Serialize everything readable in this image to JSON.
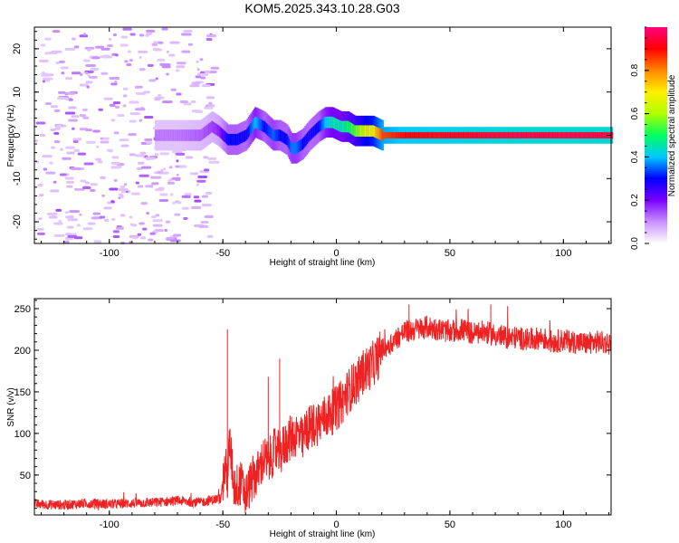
{
  "title": "KOM5.2025.343.10.28.G03",
  "chart_data": [
    {
      "type": "heatmap",
      "xlabel": "Height of straight line (km)",
      "ylabel": "Frequency (Hz)",
      "xlim": [
        -133,
        121
      ],
      "ylim": [
        -25,
        25
      ],
      "xticks": [
        -100,
        -50,
        0,
        50,
        100
      ],
      "yticks": [
        -20,
        -10,
        0,
        10,
        20
      ],
      "colorbar": {
        "label": "Normalized spectral amplitude",
        "range": [
          0,
          1
        ],
        "ticks": [
          0.0,
          0.2,
          0.4,
          0.6,
          0.8
        ],
        "tick_labels": [
          "0.0",
          "0.2",
          "0.4",
          "0.6",
          "0.8"
        ],
        "colormap": [
          "#ffffff",
          "#c890ff",
          "#7a00ff",
          "#0000ff",
          "#00c8ff",
          "#00ff60",
          "#b0ff00",
          "#ffee00",
          "#ff8800",
          "#ff0000",
          "#ff0080"
        ]
      },
      "ridge": {
        "x": [
          -80,
          -70,
          -60,
          -55,
          -52,
          -48,
          -44,
          -40,
          -36,
          -32,
          -28,
          -25,
          -22,
          -20,
          -18,
          -15,
          -12,
          -8,
          -5,
          -2,
          2,
          5,
          8,
          12,
          16,
          20,
          30,
          50,
          80,
          121
        ],
        "freq": [
          0,
          0,
          0,
          2,
          1,
          -1,
          -1,
          0,
          3,
          2,
          0,
          0,
          -1,
          -3,
          -3,
          -2,
          0,
          2,
          3,
          3,
          2,
          2,
          1,
          1,
          1,
          0,
          0,
          0,
          0,
          0
        ],
        "amplitude": [
          0.12,
          0.12,
          0.14,
          0.16,
          0.18,
          0.3,
          0.3,
          0.28,
          0.4,
          0.3,
          0.35,
          0.3,
          0.3,
          0.36,
          0.36,
          0.3,
          0.28,
          0.3,
          0.4,
          0.45,
          0.45,
          0.5,
          0.55,
          0.65,
          0.7,
          0.85,
          0.9,
          0.92,
          0.95,
          0.95
        ]
      }
    },
    {
      "type": "line",
      "xlabel": "Height of straight line (km)",
      "ylabel": "SNR (v/v)",
      "xlim": [
        -133,
        121
      ],
      "ylim": [
        2,
        262
      ],
      "xticks": [
        -100,
        -50,
        0,
        50,
        100
      ],
      "yticks": [
        50,
        100,
        150,
        200,
        250
      ],
      "color": "#ee2222",
      "series": [
        {
          "x": [
            -133,
            -120,
            -110,
            -100,
            -90,
            -80,
            -70,
            -60,
            -55,
            -51,
            -49,
            -48,
            -47,
            -45,
            -42,
            -40,
            -37,
            -35,
            -32,
            -30,
            -27,
            -25,
            -22,
            -20,
            -17,
            -15,
            -13,
            -10,
            -7,
            -5,
            -2,
            0,
            3,
            5,
            8,
            10,
            12,
            15,
            18,
            20,
            22,
            25,
            28,
            30,
            35,
            40,
            45,
            50,
            55,
            60,
            65,
            70,
            75,
            80,
            85,
            90,
            95,
            100,
            105,
            110,
            115,
            121
          ],
          "y": [
            15,
            14,
            16,
            15,
            16,
            17,
            19,
            17,
            20,
            22,
            60,
            45,
            90,
            35,
            40,
            25,
            45,
            50,
            70,
            65,
            80,
            75,
            90,
            95,
            100,
            90,
            105,
            110,
            115,
            120,
            125,
            130,
            140,
            150,
            160,
            165,
            175,
            180,
            190,
            200,
            205,
            210,
            218,
            222,
            225,
            228,
            225,
            222,
            225,
            220,
            222,
            218,
            215,
            215,
            212,
            215,
            210,
            212,
            210,
            208,
            210,
            208
          ]
        }
      ],
      "annotations": [
        {
          "x": -48,
          "y": 225
        },
        {
          "x": -25,
          "y": 190
        },
        {
          "x": -30,
          "y": 168
        },
        {
          "x": 32,
          "y": 255
        },
        {
          "x": 68,
          "y": 255
        }
      ]
    }
  ]
}
